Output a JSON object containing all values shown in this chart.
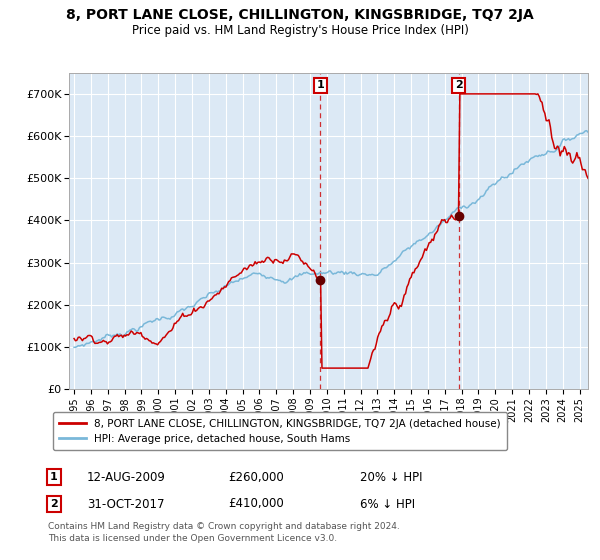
{
  "title": "8, PORT LANE CLOSE, CHILLINGTON, KINGSBRIDGE, TQ7 2JA",
  "subtitle": "Price paid vs. HM Land Registry's House Price Index (HPI)",
  "background_color": "#ffffff",
  "plot_bg_color": "#dce9f5",
  "grid_color": "#ffffff",
  "hpi_color": "#7ab8d9",
  "property_color": "#cc0000",
  "marker_color": "#660000",
  "ylim": [
    0,
    750000
  ],
  "yticks": [
    0,
    100000,
    200000,
    300000,
    400000,
    500000,
    600000,
    700000
  ],
  "ytick_labels": [
    "£0",
    "£100K",
    "£200K",
    "£300K",
    "£400K",
    "£500K",
    "£600K",
    "£700K"
  ],
  "xlim_start": 1994.7,
  "xlim_end": 2025.5,
  "purchase1_x": 2009.62,
  "purchase1_y": 260000,
  "purchase1_label": "1",
  "purchase1_date": "12-AUG-2009",
  "purchase1_price": "£260,000",
  "purchase1_hpi": "20% ↓ HPI",
  "purchase2_x": 2017.83,
  "purchase2_y": 410000,
  "purchase2_label": "2",
  "purchase2_date": "31-OCT-2017",
  "purchase2_price": "£410,000",
  "purchase2_hpi": "6% ↓ HPI",
  "legend_property": "8, PORT LANE CLOSE, CHILLINGTON, KINGSBRIDGE, TQ7 2JA (detached house)",
  "legend_hpi": "HPI: Average price, detached house, South Hams",
  "footer1": "Contains HM Land Registry data © Crown copyright and database right 2024.",
  "footer2": "This data is licensed under the Open Government Licence v3.0."
}
